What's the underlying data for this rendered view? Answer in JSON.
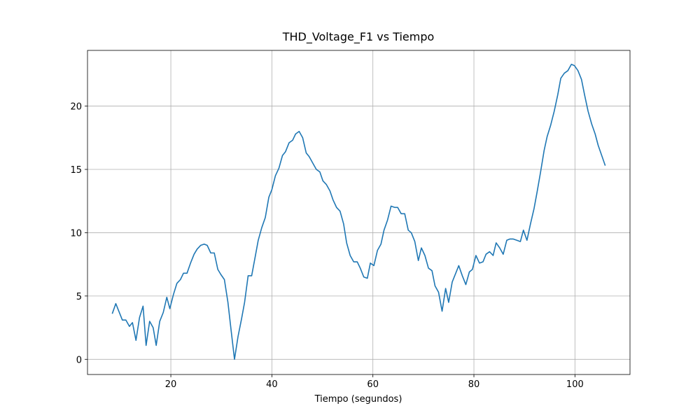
{
  "chart_data": {
    "type": "line",
    "title": "THD_Voltage_F1 vs Tiempo",
    "x_label": "Tiempo (segundos)",
    "xlim": [
      3.5,
      110.9
    ],
    "ylim": [
      -1.2,
      24.4
    ],
    "xticks": [
      20,
      40,
      60,
      80,
      100
    ],
    "yticks": [
      0,
      5,
      10,
      15,
      20
    ],
    "grid": true,
    "x": [
      8.4,
      9.1,
      9.7,
      10.4,
      11.1,
      11.8,
      12.4,
      13.1,
      13.8,
      14.5,
      15.1,
      15.8,
      16.5,
      17.1,
      17.8,
      18.5,
      19.2,
      19.8,
      20.5,
      21.2,
      21.9,
      22.5,
      23.2,
      23.9,
      24.6,
      25.2,
      25.9,
      26.6,
      27.2,
      27.9,
      28.6,
      29.3,
      29.9,
      30.6,
      31.3,
      31.9,
      32.6,
      33.3,
      34.0,
      34.6,
      35.3,
      36.0,
      36.7,
      37.3,
      38.0,
      38.7,
      39.4,
      40.0,
      40.7,
      41.4,
      42.1,
      42.7,
      43.4,
      44.1,
      44.7,
      45.4,
      46.1,
      46.8,
      47.4,
      48.1,
      48.8,
      49.5,
      50.1,
      50.8,
      51.5,
      52.1,
      52.8,
      53.5,
      54.2,
      54.8,
      55.5,
      56.2,
      56.9,
      57.5,
      58.2,
      58.9,
      59.5,
      60.2,
      60.9,
      61.6,
      62.2,
      62.9,
      63.6,
      64.3,
      64.9,
      65.6,
      66.3,
      67.0,
      67.6,
      68.3,
      69.0,
      69.6,
      70.3,
      71.0,
      71.7,
      72.3,
      73.0,
      73.7,
      74.4,
      75.0,
      75.7,
      76.4,
      77.0,
      77.7,
      78.4,
      79.1,
      79.7,
      80.4,
      81.1,
      81.8,
      82.4,
      83.1,
      83.8,
      84.4,
      85.1,
      85.8,
      86.5,
      87.1,
      87.8,
      88.5,
      89.2,
      89.8,
      90.5,
      91.2,
      91.9,
      92.5,
      93.2,
      93.9,
      94.5,
      95.2,
      95.9,
      96.6,
      97.2,
      97.9,
      98.6,
      99.3,
      99.9,
      100.6,
      101.3,
      101.9,
      102.6,
      103.3,
      104.0,
      104.6,
      105.3,
      106.0
    ],
    "series": [
      {
        "name": "THD_Voltage_F1",
        "color": "#1f77b4",
        "values": [
          3.6,
          4.4,
          3.8,
          3.1,
          3.1,
          2.6,
          2.9,
          1.5,
          3.3,
          4.2,
          1.1,
          3.0,
          2.5,
          1.1,
          3.0,
          3.7,
          4.9,
          4.0,
          5.1,
          6.0,
          6.3,
          6.8,
          6.8,
          7.6,
          8.3,
          8.7,
          9.0,
          9.1,
          9.0,
          8.4,
          8.4,
          7.1,
          6.7,
          6.3,
          4.5,
          2.4,
          0.0,
          1.8,
          3.2,
          4.5,
          6.6,
          6.6,
          8.1,
          9.4,
          10.4,
          11.2,
          12.8,
          13.4,
          14.5,
          15.1,
          16.1,
          16.4,
          17.1,
          17.3,
          17.8,
          18.0,
          17.5,
          16.3,
          16.0,
          15.5,
          15.0,
          14.8,
          14.1,
          13.8,
          13.3,
          12.6,
          12.0,
          11.7,
          10.7,
          9.2,
          8.2,
          7.7,
          7.7,
          7.2,
          6.5,
          6.4,
          7.6,
          7.4,
          8.6,
          9.1,
          10.2,
          11.0,
          12.1,
          12.0,
          12.0,
          11.5,
          11.5,
          10.2,
          10.0,
          9.3,
          7.8,
          8.8,
          8.2,
          7.2,
          7.0,
          5.8,
          5.3,
          3.8,
          5.6,
          4.5,
          6.1,
          6.8,
          7.4,
          6.6,
          5.9,
          6.9,
          7.1,
          8.2,
          7.6,
          7.7,
          8.3,
          8.5,
          8.2,
          9.2,
          8.8,
          8.3,
          9.4,
          9.5,
          9.5,
          9.4,
          9.3,
          10.2,
          9.4,
          10.7,
          11.9,
          13.2,
          14.8,
          16.5,
          17.6,
          18.5,
          19.6,
          20.9,
          22.2,
          22.6,
          22.8,
          23.3,
          23.2,
          22.8,
          22.1,
          20.9,
          19.6,
          18.6,
          17.8,
          16.9,
          16.1,
          15.3
        ]
      }
    ]
  }
}
